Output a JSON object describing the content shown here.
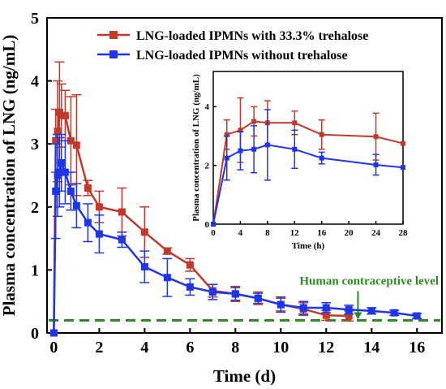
{
  "chart_data": [
    {
      "type": "line",
      "xlabel": "Time (d)",
      "ylabel": "Plasma concentration of LNG (ng/mL)",
      "xlim": [
        -0.3,
        17.1
      ],
      "ylim": [
        0,
        5
      ],
      "xticks": [
        "0",
        "2",
        "4",
        "6",
        "8",
        "10",
        "12",
        "14",
        "16"
      ],
      "yticks": [
        "0",
        "1",
        "2",
        "3",
        "4",
        "5"
      ],
      "legend_position": "top-right",
      "series": [
        {
          "name": "LNG-loaded IPMNs with 33.3% trehalose",
          "color": "#c0392b",
          "marker": "square",
          "x": [
            0,
            0.083,
            0.167,
            0.25,
            0.333,
            0.5,
            0.75,
            1,
            1.5,
            2,
            3,
            4,
            5,
            6,
            7,
            8,
            9,
            10,
            11,
            12,
            13
          ],
          "y": [
            0,
            3.05,
            3.2,
            3.5,
            3.45,
            3.45,
            3.05,
            2.98,
            2.3,
            2.0,
            1.92,
            1.6,
            1.3,
            1.08,
            0.67,
            0.62,
            0.55,
            0.45,
            0.38,
            0.28,
            0.27
          ],
          "err": [
            0,
            0.5,
            0.8,
            0.8,
            0.5,
            0.4,
            0.7,
            0.8,
            0.12,
            0.25,
            0.38,
            0.4,
            0.05,
            0.1,
            0.1,
            0.12,
            0.1,
            0.1,
            0.1,
            0.08,
            0.08
          ]
        },
        {
          "name": "LNG-loaded IPMNs without trehalose",
          "color": "#1f35e8",
          "marker": "square",
          "x": [
            0,
            0.083,
            0.167,
            0.25,
            0.333,
            0.5,
            0.75,
            1,
            1.5,
            2,
            3,
            4,
            5,
            6,
            7,
            8,
            9,
            10,
            11,
            12,
            13,
            14,
            15,
            16
          ],
          "y": [
            0,
            2.25,
            2.5,
            2.55,
            2.7,
            2.55,
            2.25,
            2.02,
            1.75,
            1.57,
            1.48,
            1.05,
            0.88,
            0.73,
            0.65,
            0.62,
            0.55,
            0.45,
            0.4,
            0.4,
            0.37,
            0.35,
            0.32,
            0.27
          ],
          "err": [
            0,
            0.75,
            0.65,
            0.55,
            0.45,
            0.5,
            0.3,
            0.35,
            0.3,
            0.3,
            0.12,
            0.25,
            0.3,
            0.13,
            0.12,
            0.1,
            0.08,
            0.12,
            0.1,
            0.08,
            0.07,
            0.05,
            0.04,
            0.04
          ]
        }
      ],
      "reference_line": {
        "label": "Human contraceptive level",
        "y": 0.2,
        "color": "#2e8b22",
        "style": "dashed",
        "arrow_at_x": 13.4
      }
    },
    {
      "type": "line",
      "xlabel": "Time (h)",
      "ylabel": "Plasma concentration of LNG (ng/mL)",
      "xlim": [
        0,
        28
      ],
      "ylim": [
        0,
        5.2
      ],
      "xticks": [
        "0",
        "4",
        "8",
        "12",
        "16",
        "20",
        "24",
        "28"
      ],
      "yticks": [
        "0",
        "2",
        "4"
      ],
      "series": [
        {
          "color": "#c0392b",
          "marker": "square",
          "x": [
            0,
            2,
            4,
            6,
            8,
            12,
            16,
            24,
            28
          ],
          "y": [
            0,
            3.05,
            3.2,
            3.5,
            3.45,
            3.45,
            3.05,
            2.98,
            2.75
          ],
          "err": [
            0,
            0.5,
            1.1,
            0.5,
            0.75,
            0.4,
            0.5,
            0.8,
            0
          ]
        },
        {
          "color": "#1f35e8",
          "marker": "square",
          "x": [
            0,
            2,
            4,
            6,
            8,
            12,
            16,
            24,
            28
          ],
          "y": [
            0,
            2.25,
            2.5,
            2.55,
            2.7,
            2.55,
            2.25,
            2.02,
            1.93
          ],
          "err": [
            0,
            0.75,
            0.65,
            0.8,
            1.2,
            0.65,
            0.2,
            0.35,
            0
          ]
        }
      ]
    }
  ]
}
